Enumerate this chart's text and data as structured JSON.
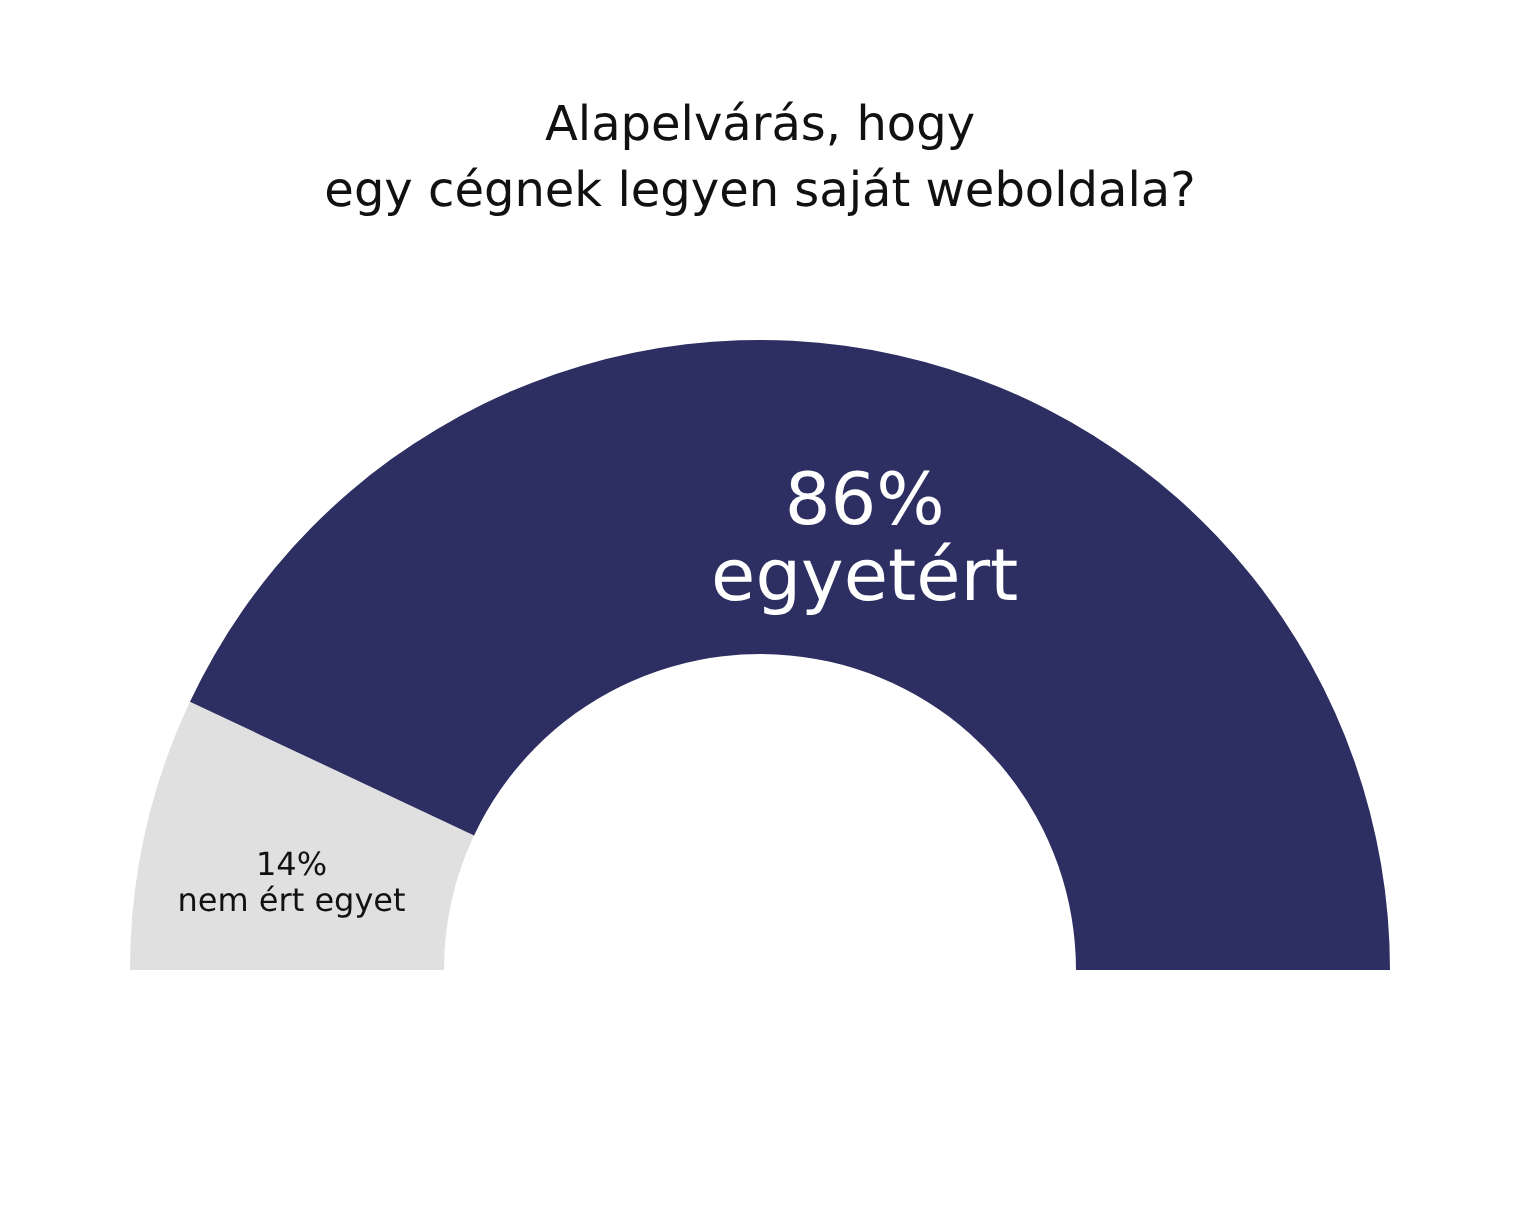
{
  "chart_data": {
    "type": "donut",
    "title": "Alapelvárás, hogy\negy cégnek legyen saját weboldala?",
    "categories": [
      "nem ért egyet",
      "egyetért"
    ],
    "values": [
      14,
      86
    ],
    "value_labels": [
      "14%",
      "86%"
    ],
    "colors": [
      "#e0e0e0",
      "#2d2f62"
    ],
    "legend": false
  }
}
